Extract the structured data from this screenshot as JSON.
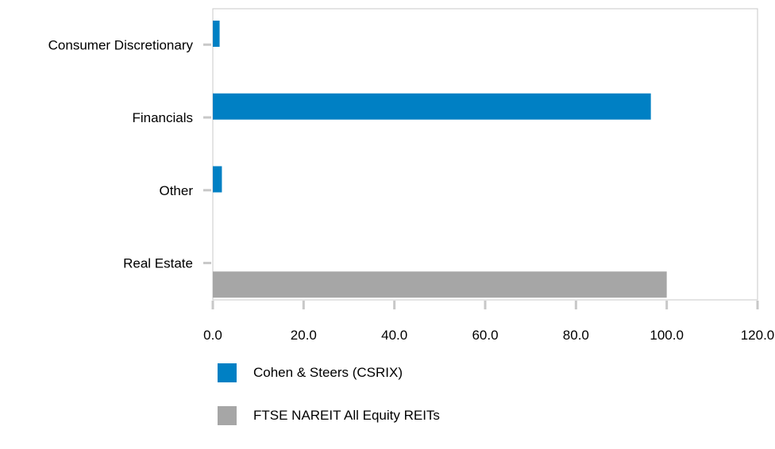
{
  "chart_data": {
    "type": "bar",
    "orientation": "horizontal",
    "categories": [
      "Consumer Discretionary",
      "Financials",
      "Other",
      "Real Estate"
    ],
    "series": [
      {
        "name": "Cohen & Steers (CSRIX)",
        "color": "#0080c4",
        "values": [
          1.5,
          96.5,
          2.0,
          null
        ]
      },
      {
        "name": "FTSE NAREIT All Equity REITs",
        "color": "#a6a6a6",
        "values": [
          null,
          null,
          null,
          100.0
        ]
      }
    ],
    "xticks": [
      "0.0",
      "20.0",
      "40.0",
      "60.0",
      "80.0",
      "100.0",
      "120.0"
    ],
    "xlim": [
      0,
      120
    ],
    "grid": false,
    "legend_position": "bottom"
  }
}
